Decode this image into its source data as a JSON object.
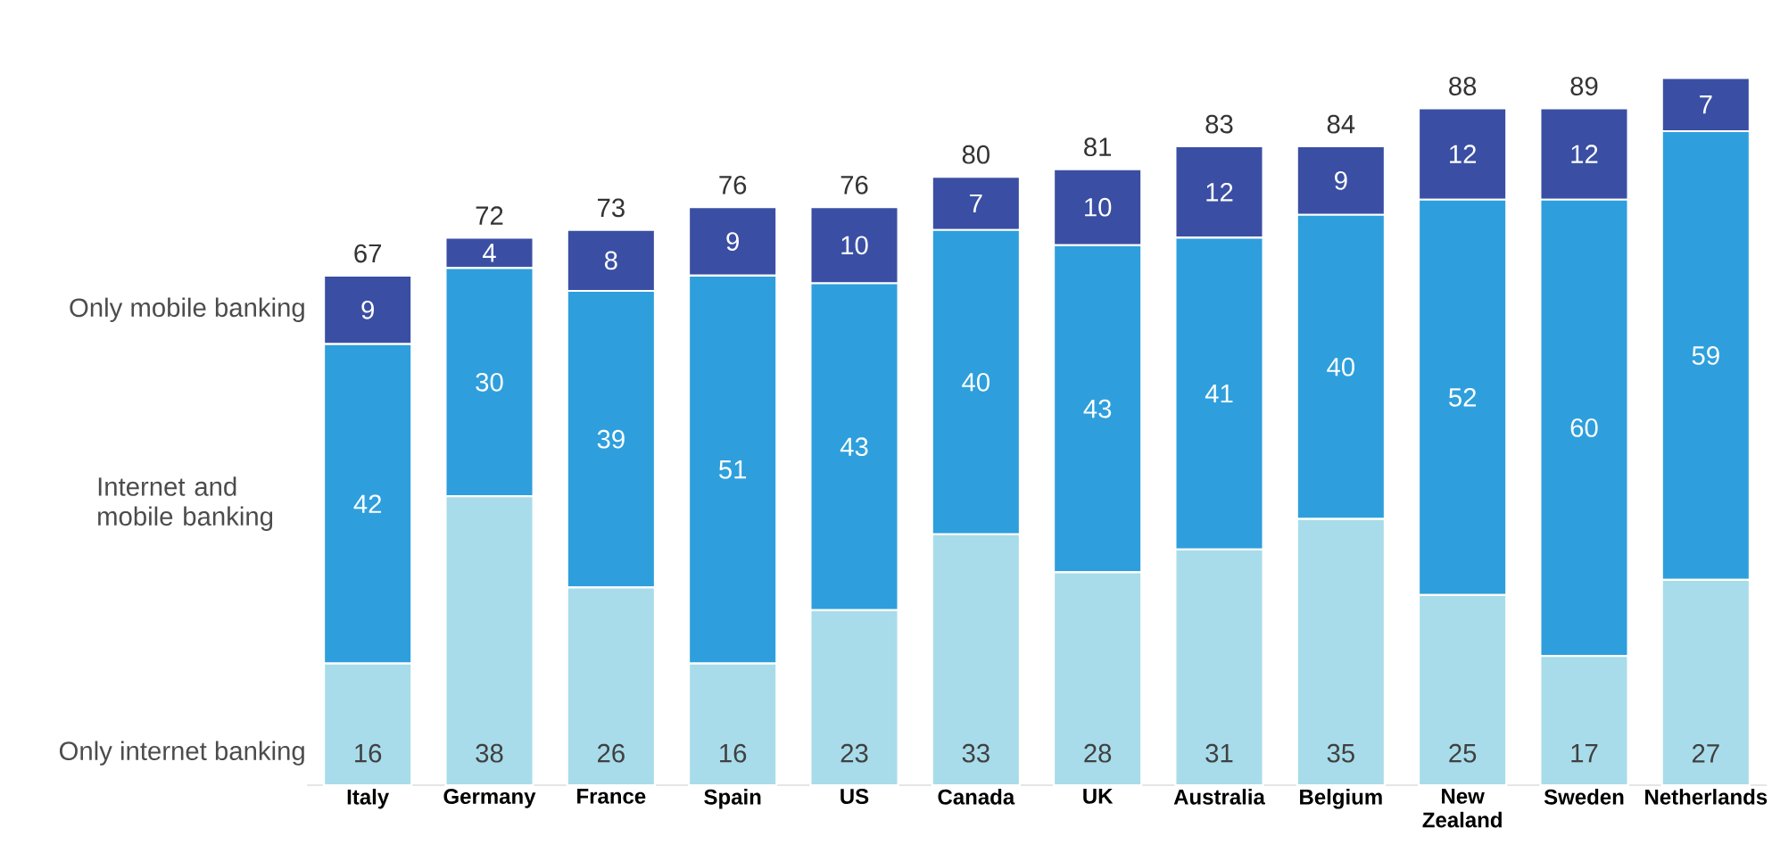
{
  "chart_data": {
    "type": "bar",
    "stacked": true,
    "data_labels": true,
    "legend": "left",
    "categories": [
      "Italy",
      "Germany",
      "France",
      "Spain",
      "US",
      "Canada",
      "UK",
      "Australia",
      "Belgium",
      "New Zealand",
      "Sweden",
      "Netherlands"
    ],
    "series": [
      {
        "name": "Only internet banking",
        "color": "#a8dcea",
        "values": [
          16,
          38,
          26,
          16,
          23,
          33,
          28,
          31,
          35,
          25,
          17,
          27
        ]
      },
      {
        "name": "Internet and mobile banking",
        "color": "#2e9fdc",
        "values": [
          42,
          30,
          39,
          51,
          43,
          40,
          43,
          41,
          40,
          52,
          60,
          59
        ]
      },
      {
        "name": "Only mobile banking",
        "color": "#3a4fa3",
        "values": [
          9,
          4,
          8,
          9,
          10,
          7,
          10,
          12,
          9,
          12,
          12,
          7
        ]
      }
    ],
    "totals": [
      "67",
      "72",
      "73",
      "76",
      "76",
      "80",
      "81",
      "83",
      "84",
      "88",
      "89",
      null
    ]
  }
}
